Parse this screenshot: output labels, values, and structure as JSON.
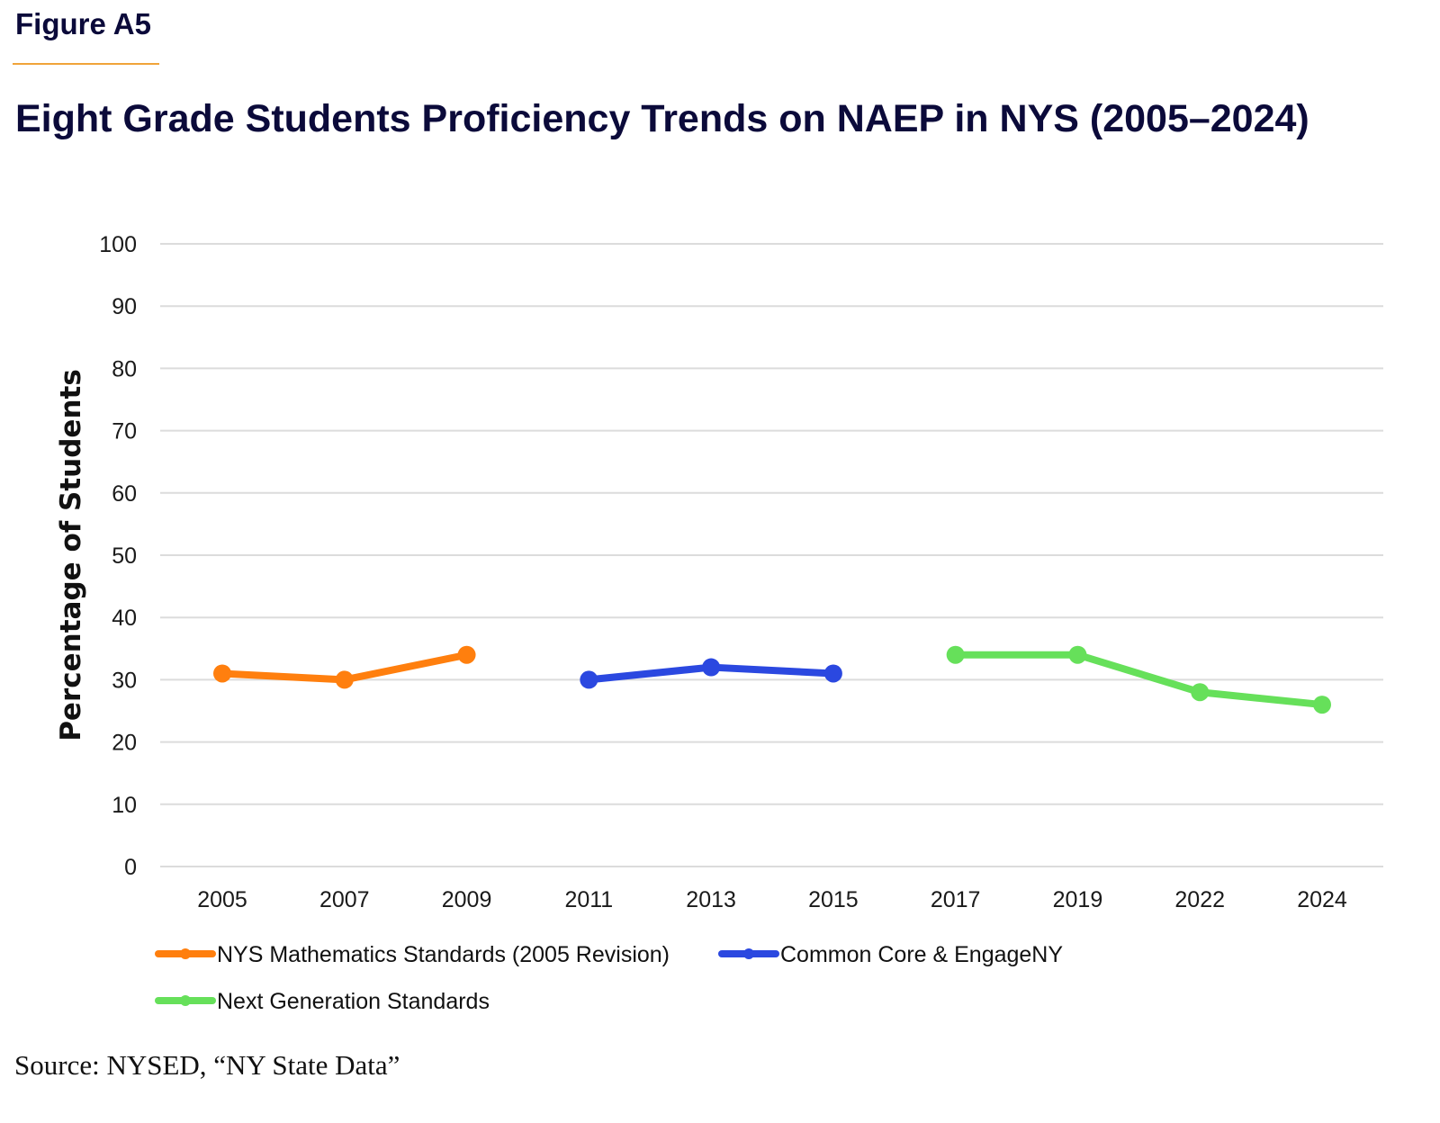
{
  "figure_label": "Figure A5",
  "source": "Source: NYSED, “NY State Data”",
  "colors": {
    "heading": "#0b0a3a",
    "rule": "#f0a43a",
    "grid": "#dcdcdc"
  },
  "chart_data": {
    "type": "line",
    "title": "Eight Grade Students Proficiency Trends on NAEP in NYS (2005–2024)",
    "xlabel": "",
    "ylabel": "Percentage of Students",
    "categories": [
      "2005",
      "2007",
      "2009",
      "2011",
      "2013",
      "2015",
      "2017",
      "2019",
      "2022",
      "2024"
    ],
    "ylim": [
      0,
      100
    ],
    "yticks": [
      0,
      10,
      20,
      30,
      40,
      50,
      60,
      70,
      80,
      90,
      100
    ],
    "grid": true,
    "legend_position": "bottom-left",
    "series": [
      {
        "name": "NYS Mathematics Standards (2005 Revision)",
        "color": "#ff7f0e",
        "points": [
          {
            "x": "2005",
            "y": 31
          },
          {
            "x": "2007",
            "y": 30
          },
          {
            "x": "2009",
            "y": 34
          }
        ]
      },
      {
        "name": "Common Core & EngageNY",
        "color": "#2b48e0",
        "points": [
          {
            "x": "2011",
            "y": 30
          },
          {
            "x": "2013",
            "y": 32
          },
          {
            "x": "2015",
            "y": 31
          }
        ]
      },
      {
        "name": "Next Generation Standards",
        "color": "#66e05a",
        "points": [
          {
            "x": "2017",
            "y": 34
          },
          {
            "x": "2019",
            "y": 34
          },
          {
            "x": "2022",
            "y": 28
          },
          {
            "x": "2024",
            "y": 26
          }
        ]
      }
    ]
  }
}
